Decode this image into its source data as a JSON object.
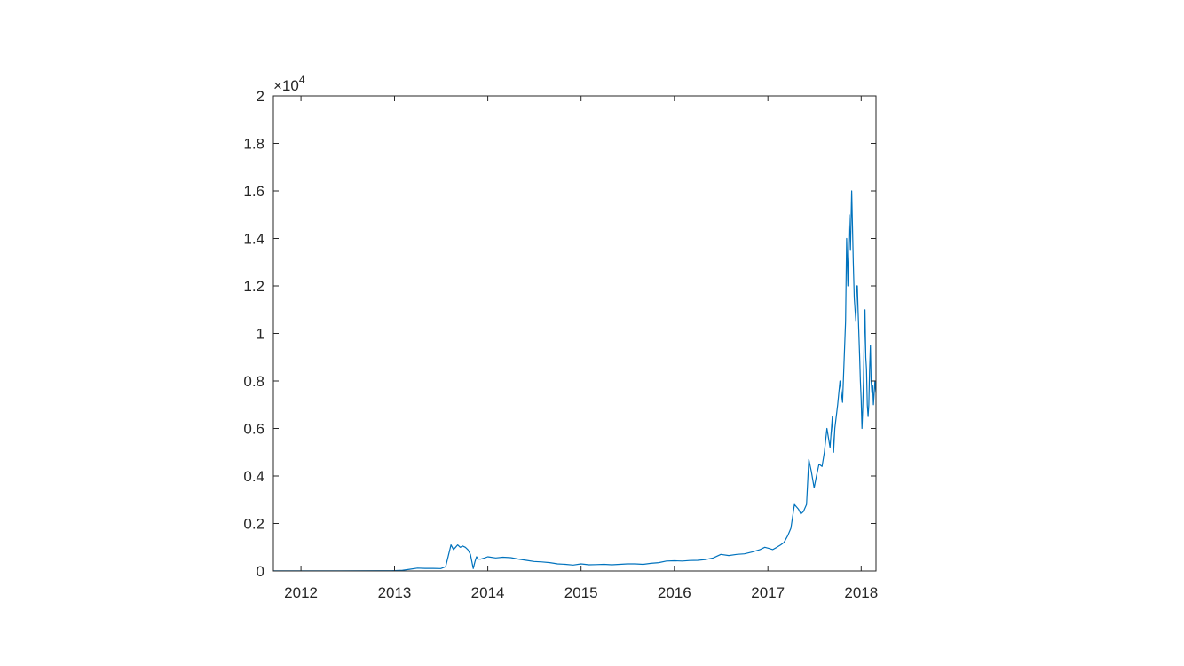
{
  "chart_data": {
    "type": "line",
    "title": "",
    "xlabel": "",
    "ylabel": "",
    "x_tick_labels": [
      "2012",
      "2013",
      "2014",
      "2015",
      "2016",
      "2017",
      "2018"
    ],
    "y_tick_labels": [
      "0",
      "0.2",
      "0.4",
      "0.6",
      "0.8",
      "1",
      "1.2",
      "1.4",
      "1.6",
      "1.8",
      "2"
    ],
    "y_exponent_label": {
      "prefix": "×10",
      "power": "4"
    },
    "xlim": [
      "2011-09-15",
      "2018-02-28"
    ],
    "ylim": [
      0,
      20000
    ],
    "grid": false,
    "line_color": "#0072BD",
    "series": [
      {
        "x": [
          "2011-09-15",
          "2012-01-01",
          "2012-06-01",
          "2012-11-01",
          "2012-12-20",
          "2013-01-01",
          "2013-02-01",
          "2013-03-01",
          "2013-04-01",
          "2013-05-01",
          "2013-06-01",
          "2013-07-01",
          "2013-07-20",
          "2013-08-01",
          "2013-08-10",
          "2013-08-20",
          "2013-08-28",
          "2013-09-05",
          "2013-09-15",
          "2013-09-25",
          "2013-10-05",
          "2013-10-15",
          "2013-10-25",
          "2013-11-05",
          "2013-11-12",
          "2013-11-18",
          "2013-11-25",
          "2013-12-05",
          "2013-12-20",
          "2014-01-01",
          "2014-02-01",
          "2014-03-01",
          "2014-04-01",
          "2014-05-01",
          "2014-06-01",
          "2014-07-01",
          "2014-08-01",
          "2014-09-01",
          "2014-10-01",
          "2014-11-01",
          "2014-12-01",
          "2015-01-01",
          "2015-02-01",
          "2015-03-01",
          "2015-04-01",
          "2015-05-01",
          "2015-06-01",
          "2015-07-01",
          "2015-08-01",
          "2015-09-01",
          "2015-10-01",
          "2015-11-01",
          "2015-12-01",
          "2016-01-01",
          "2016-02-01",
          "2016-03-01",
          "2016-04-01",
          "2016-05-01",
          "2016-06-01",
          "2016-07-01",
          "2016-08-01",
          "2016-09-01",
          "2016-10-01",
          "2016-11-01",
          "2016-12-01",
          "2016-12-20",
          "2017-01-05",
          "2017-01-20",
          "2017-02-05",
          "2017-02-20",
          "2017-03-05",
          "2017-03-20",
          "2017-04-01",
          "2017-04-15",
          "2017-05-01",
          "2017-05-10",
          "2017-05-20",
          "2017-06-01",
          "2017-06-10",
          "2017-06-20",
          "2017-07-01",
          "2017-07-10",
          "2017-07-20",
          "2017-08-01",
          "2017-08-10",
          "2017-08-20",
          "2017-09-01",
          "2017-09-10",
          "2017-09-15",
          "2017-09-20",
          "2017-10-01",
          "2017-10-10",
          "2017-10-20",
          "2017-11-01",
          "2017-11-05",
          "2017-11-10",
          "2017-11-15",
          "2017-11-20",
          "2017-11-25",
          "2017-12-01",
          "2017-12-05",
          "2017-12-08",
          "2017-12-11",
          "2017-12-14",
          "2017-12-17",
          "2017-12-20",
          "2017-12-23",
          "2017-12-26",
          "2017-12-29",
          "2018-01-01",
          "2018-01-04",
          "2018-01-07",
          "2018-01-10",
          "2018-01-13",
          "2018-01-16",
          "2018-01-19",
          "2018-01-22",
          "2018-01-25",
          "2018-01-28",
          "2018-01-31",
          "2018-02-03",
          "2018-02-06",
          "2018-02-09",
          "2018-02-12",
          "2018-02-15",
          "2018-02-18",
          "2018-02-21",
          "2018-02-24",
          "2018-02-28"
        ],
        "values": [
          5,
          5,
          6,
          10,
          13,
          14,
          30,
          70,
          120,
          110,
          110,
          100,
          180,
          700,
          1100,
          900,
          1000,
          1100,
          1000,
          1050,
          1000,
          900,
          700,
          100,
          400,
          600,
          500,
          500,
          550,
          600,
          550,
          580,
          560,
          500,
          450,
          400,
          380,
          350,
          300,
          280,
          250,
          300,
          260,
          270,
          280,
          260,
          280,
          300,
          300,
          280,
          320,
          350,
          420,
          430,
          420,
          440,
          450,
          480,
          550,
          700,
          650,
          700,
          720,
          800,
          900,
          1000,
          950,
          900,
          1000,
          1100,
          1200,
          1500,
          1800,
          2800,
          2600,
          2400,
          2500,
          2800,
          4700,
          4200,
          3500,
          4000,
          4500,
          4400,
          5000,
          6000,
          5200,
          6500,
          5000,
          6000,
          7000,
          8000,
          7100,
          10500,
          14000,
          12000,
          15000,
          13500,
          16000,
          13000,
          11500,
          11000,
          10500,
          12000,
          12000,
          11000,
          10000,
          9000,
          8000,
          7200,
          6000,
          6800,
          8000,
          10000,
          11000,
          9000,
          8500,
          7000,
          6500,
          7000,
          8500,
          9500,
          8000,
          7500,
          7800,
          7000,
          7500,
          8000,
          7500
        ]
      }
    ]
  }
}
